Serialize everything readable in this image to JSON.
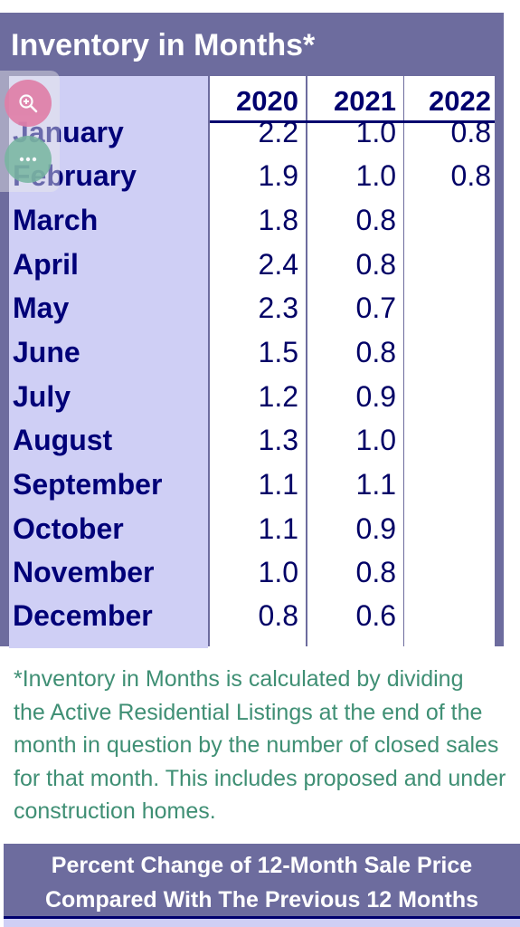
{
  "table": {
    "title": "Inventory in Months*",
    "years": [
      "2020",
      "2021",
      "2022"
    ],
    "rows": [
      {
        "month": "January",
        "v2020": "2.2",
        "v2021": "1.0",
        "v2022": "0.8"
      },
      {
        "month": "February",
        "v2020": "1.9",
        "v2021": "1.0",
        "v2022": "0.8"
      },
      {
        "month": "March",
        "v2020": "1.8",
        "v2021": "0.8",
        "v2022": ""
      },
      {
        "month": "April",
        "v2020": "2.4",
        "v2021": "0.8",
        "v2022": ""
      },
      {
        "month": "May",
        "v2020": "2.3",
        "v2021": "0.7",
        "v2022": ""
      },
      {
        "month": "June",
        "v2020": "1.5",
        "v2021": "0.8",
        "v2022": ""
      },
      {
        "month": "July",
        "v2020": "1.2",
        "v2021": "0.9",
        "v2022": ""
      },
      {
        "month": "August",
        "v2020": "1.3",
        "v2021": "1.0",
        "v2022": ""
      },
      {
        "month": "September",
        "v2020": "1.1",
        "v2021": "1.1",
        "v2022": ""
      },
      {
        "month": "October",
        "v2020": "1.1",
        "v2021": "0.9",
        "v2022": ""
      },
      {
        "month": "November",
        "v2020": "1.0",
        "v2021": "0.8",
        "v2022": ""
      },
      {
        "month": "December",
        "v2020": "0.8",
        "v2021": "0.6",
        "v2022": ""
      }
    ]
  },
  "footnote": {
    "lines": [
      "*Inventory in Months is calculated by dividing",
      "the Active Residential Listings at the end of the",
      "month in question by the number of closed sales",
      "for that month. This includes proposed and under",
      "construction homes."
    ]
  },
  "banner": {
    "line1": "Percent Change of 12-Month Sale Price",
    "line2": "Compared With The Previous 12 Months"
  },
  "controls": {
    "zoom_icon": "zoom-in-icon",
    "more_icon": "more-options-icon"
  },
  "colors": {
    "frame": "#6d6c9e",
    "month_bg": "#cfcff5",
    "text_navy": "#000078",
    "note_green": "#3f8f74"
  }
}
